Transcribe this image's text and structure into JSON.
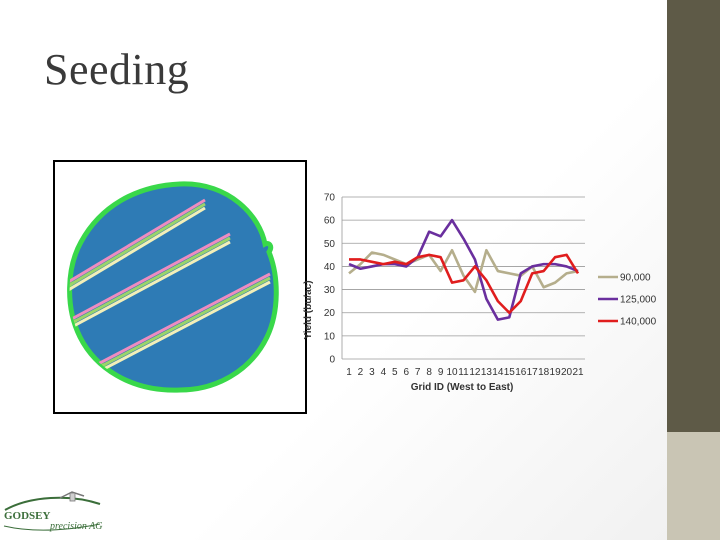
{
  "slide": {
    "title": "Seeding"
  },
  "logo": {
    "name": "GODSEY",
    "tagline": "precision AG"
  },
  "field_image": {
    "description_colors": {
      "field": "#2e7bb5",
      "border": "#39d84a"
    }
  },
  "chart_data": {
    "type": "line",
    "title": "",
    "xlabel": "Grid ID (West to East)",
    "ylabel": "Yield (bu/ac)",
    "ylim": [
      0,
      70
    ],
    "yticks": [
      0,
      10,
      20,
      30,
      40,
      50,
      60,
      70
    ],
    "categories": [
      "1",
      "2",
      "3",
      "4",
      "5",
      "6",
      "7",
      "8",
      "9",
      "10",
      "11",
      "12",
      "13",
      "14",
      "15",
      "16",
      "17",
      "18",
      "19",
      "20",
      "21"
    ],
    "legend_position": "right",
    "series": [
      {
        "name": "90,000",
        "color": "#b5ae8c",
        "values": [
          37,
          41,
          46,
          45,
          43,
          41,
          43,
          45,
          38,
          47,
          36,
          29,
          47,
          38,
          37,
          36,
          40,
          31,
          33,
          37,
          38
        ]
      },
      {
        "name": "125,000",
        "color": "#6a2f9e",
        "values": [
          41,
          39,
          40,
          41,
          41,
          40,
          44,
          55,
          53,
          60,
          52,
          43,
          26,
          17,
          18,
          37,
          40,
          41,
          41,
          40,
          38
        ]
      },
      {
        "name": "140,000",
        "color": "#e01d1d",
        "values": [
          43,
          43,
          42,
          41,
          42,
          41,
          44,
          45,
          44,
          33,
          34,
          40,
          34,
          25,
          20,
          25,
          37,
          38,
          44,
          45,
          37
        ]
      }
    ]
  }
}
